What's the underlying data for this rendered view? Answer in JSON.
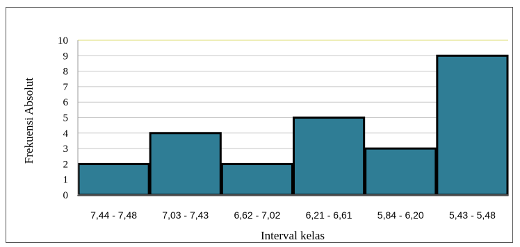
{
  "chart_data": {
    "type": "bar",
    "categories": [
      "7,44 - 7,48",
      "7,03 - 7,43",
      "6,62 - 7,02",
      "6,21 - 6,61",
      "5,84 - 6,20",
      "5,43 - 5,48"
    ],
    "values": [
      2,
      4,
      2,
      5,
      3,
      9
    ],
    "xlabel": "Interval kelas",
    "ylabel": "Frekuensi Absolut",
    "ylim": [
      0,
      10
    ],
    "yticks": [
      "0",
      "1",
      "2",
      "3",
      "4",
      "5",
      "6",
      "7",
      "8",
      "9",
      "10"
    ],
    "grid": true,
    "legend": "none",
    "colors": {
      "bar_fill": "#2f7d95",
      "bar_stroke": "#000000",
      "grid": "#c8c8c8",
      "top_line": "#e8e8a0",
      "axis": "#999999"
    }
  }
}
